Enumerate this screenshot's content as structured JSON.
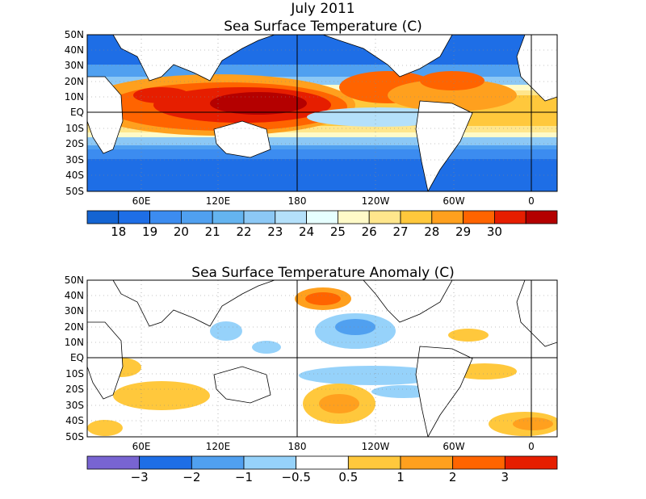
{
  "header": {
    "title": "July 2011"
  },
  "top_panel": {
    "title": "Sea Surface Temperature (C)",
    "lat_labels": [
      "50N",
      "40N",
      "30N",
      "20N",
      "10N",
      "EQ",
      "10S",
      "20S",
      "30S",
      "40S",
      "50S"
    ],
    "lon_labels": [
      "60E",
      "120E",
      "180",
      "120W",
      "60W",
      "0"
    ],
    "colorbar": {
      "colors": [
        "#1464d2",
        "#1e6ee6",
        "#3c8cf0",
        "#50a0f0",
        "#64b4f0",
        "#8cc8f5",
        "#b4e0fa",
        "#e6ffff",
        "#fffac8",
        "#ffe68c",
        "#ffc83c",
        "#ffa01e",
        "#ff6400",
        "#e61e00",
        "#b40000"
      ],
      "labels": [
        "18",
        "19",
        "20",
        "21",
        "22",
        "23",
        "24",
        "25",
        "26",
        "27",
        "28",
        "29",
        "30"
      ]
    }
  },
  "bottom_panel": {
    "title": "Sea Surface Temperature Anomaly (C)",
    "lat_labels": [
      "50N",
      "40N",
      "30N",
      "20N",
      "10N",
      "EQ",
      "10S",
      "20S",
      "30S",
      "40S",
      "50S"
    ],
    "lon_labels": [
      "60E",
      "120E",
      "180",
      "120W",
      "60W",
      "0"
    ],
    "colorbar": {
      "colors": [
        "#7864d2",
        "#1e6ee6",
        "#50a0f0",
        "#96d2fa",
        "#ffffff",
        "#ffc83c",
        "#ffa01e",
        "#ff6400",
        "#e61e00"
      ],
      "labels": [
        "−3",
        "−2",
        "−1",
        "−0.5",
        "0.5",
        "1",
        "2",
        "3"
      ]
    }
  },
  "map_colors": {
    "land": "#ffffff",
    "coast": "#000000",
    "grid": "#888888"
  }
}
